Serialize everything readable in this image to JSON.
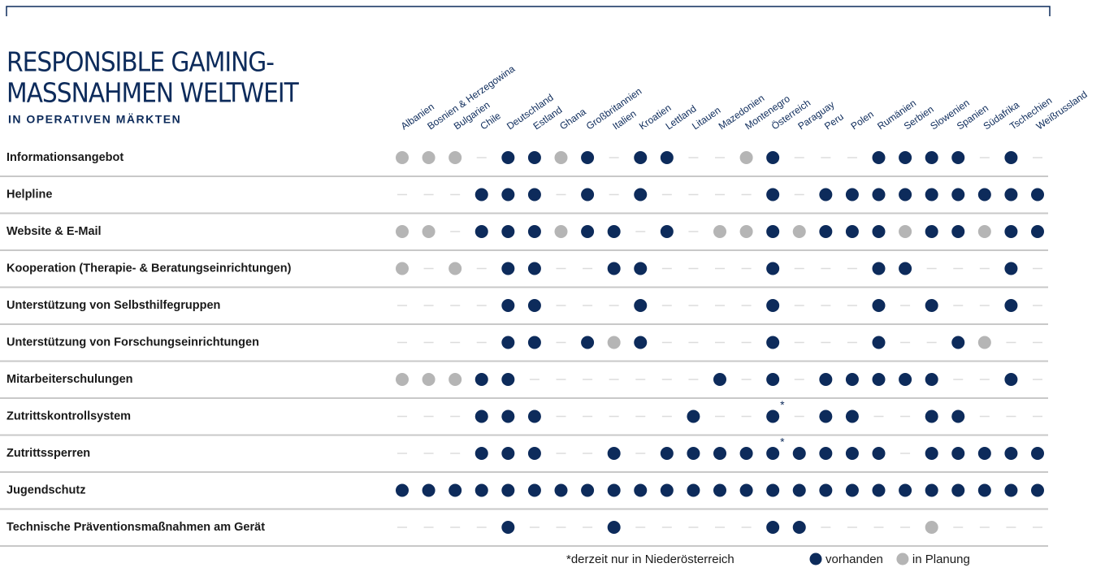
{
  "title": [
    "RESPONSIBLE GAMING-",
    "MASSNAHMEN WELTWEIT"
  ],
  "subtitle": "IN OPERATIVEN MÄRKTEN",
  "columns": [
    "Albanien",
    "Bosnien & Herzegowina",
    "Bulgarien",
    "Chile",
    "Deutschland",
    "Estland",
    "Ghana",
    "Großbritannien",
    "Italien",
    "Kroatien",
    "Lettland",
    "Litauen",
    "Mazedonien",
    "Montenegro",
    "Österreich",
    "Paraguay",
    "Peru",
    "Polen",
    "Rumänien",
    "Serbien",
    "Slowenien",
    "Spanien",
    "Südafrika",
    "Tschechien",
    "Weißrussland"
  ],
  "legend": [
    {
      "label": "vorhanden",
      "color": "#0d2b5b"
    },
    {
      "label": "in Planung",
      "color": "#b5b5b5"
    }
  ],
  "marker": "*",
  "footnote": "*derzeit nur in Niederösterreich",
  "rows": [
    {
      "label": "Informationsangebot",
      "cells": [
        1,
        1,
        1,
        null,
        0,
        0,
        1,
        0,
        null,
        0,
        0,
        null,
        null,
        1,
        0,
        null,
        null,
        null,
        0,
        0,
        0,
        0,
        null,
        0,
        null
      ]
    },
    {
      "label": "Helpline",
      "cells": [
        null,
        null,
        null,
        0,
        0,
        0,
        null,
        0,
        null,
        0,
        null,
        null,
        null,
        null,
        0,
        null,
        0,
        0,
        0,
        0,
        0,
        0,
        0,
        0,
        0
      ]
    },
    {
      "label": "Website & E-Mail",
      "cells": [
        1,
        1,
        null,
        0,
        0,
        0,
        1,
        0,
        0,
        null,
        0,
        null,
        1,
        1,
        0,
        1,
        0,
        0,
        0,
        1,
        0,
        0,
        1,
        0,
        0
      ]
    },
    {
      "label": "Kooperation (Therapie- & Beratungseinrichtungen)",
      "cells": [
        1,
        null,
        1,
        null,
        0,
        0,
        null,
        null,
        0,
        0,
        null,
        null,
        null,
        null,
        0,
        null,
        null,
        null,
        0,
        0,
        null,
        null,
        null,
        0,
        null
      ]
    },
    {
      "label": "Unterstützung von Selbsthilfegruppen",
      "cells": [
        null,
        null,
        null,
        null,
        0,
        0,
        null,
        null,
        null,
        0,
        null,
        null,
        null,
        null,
        0,
        null,
        null,
        null,
        0,
        null,
        0,
        null,
        null,
        0,
        null
      ]
    },
    {
      "label": "Unterstützung von Forschungseinrichtungen",
      "cells": [
        null,
        null,
        null,
        null,
        0,
        0,
        null,
        0,
        1,
        0,
        null,
        null,
        null,
        null,
        0,
        null,
        null,
        null,
        0,
        null,
        null,
        0,
        1,
        null,
        null
      ]
    },
    {
      "label": "Mitarbeiterschulungen",
      "cells": [
        1,
        1,
        1,
        0,
        0,
        null,
        null,
        null,
        null,
        null,
        null,
        null,
        0,
        null,
        0,
        null,
        0,
        0,
        0,
        0,
        0,
        null,
        null,
        0,
        null
      ]
    },
    {
      "label": "Zutrittskontrollsystem",
      "cells": [
        null,
        null,
        null,
        0,
        0,
        0,
        null,
        null,
        null,
        null,
        null,
        0,
        null,
        null,
        0,
        null,
        0,
        0,
        null,
        null,
        0,
        0,
        null,
        null,
        null
      ],
      "starred": [
        14
      ]
    },
    {
      "label": "Zutrittssperren",
      "cells": [
        null,
        null,
        null,
        0,
        0,
        0,
        null,
        null,
        0,
        null,
        0,
        0,
        0,
        0,
        0,
        0,
        0,
        0,
        0,
        null,
        0,
        0,
        0,
        0,
        0
      ],
      "starred": [
        14
      ]
    },
    {
      "label": "Jugendschutz",
      "cells": [
        0,
        0,
        0,
        0,
        0,
        0,
        0,
        0,
        0,
        0,
        0,
        0,
        0,
        0,
        0,
        0,
        0,
        0,
        0,
        0,
        0,
        0,
        0,
        0,
        0
      ]
    },
    {
      "label": "Technische Präventionsmaßnahmen am Gerät",
      "cells": [
        null,
        null,
        null,
        null,
        0,
        null,
        null,
        null,
        0,
        null,
        null,
        null,
        null,
        null,
        0,
        0,
        null,
        null,
        null,
        null,
        1,
        null,
        null,
        null,
        null
      ]
    }
  ]
}
